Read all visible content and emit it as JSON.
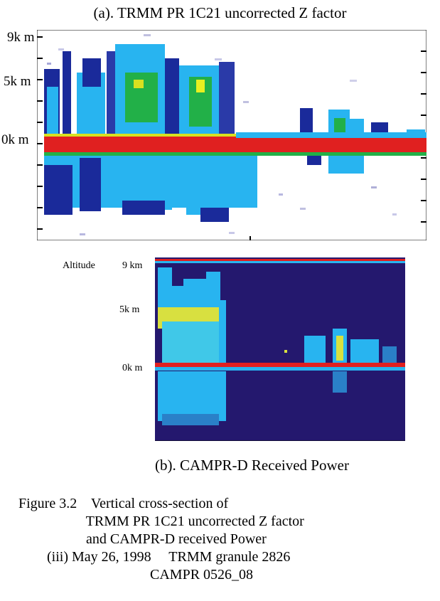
{
  "panel_a": {
    "title": "(a). TRMM PR 1C21 uncorrected Z factor",
    "y_labels": [
      "9k m",
      "5k m",
      "0k m"
    ]
  },
  "panel_b": {
    "title": "(b). CAMPR-D Received Power",
    "side_label": "Altitude",
    "y_labels": [
      "9 km",
      "5k m",
      "0k m"
    ]
  },
  "caption": {
    "line1": "Figure 3.2    Vertical cross-section of",
    "line2": "                   TRMM PR 1C21 uncorrected Z factor",
    "line3": "                   and CAMPR-D received Power",
    "line4": "        (iii) May 26, 1998     TRMM granule 2826",
    "line5": "                                     CAMPR 0526_08"
  },
  "colors": {
    "surface": "#e02020",
    "high": "#f0f020",
    "mid": "#20b040",
    "low": "#28b4f0",
    "lowest": "#1020a0",
    "background_b": "#24186e"
  }
}
